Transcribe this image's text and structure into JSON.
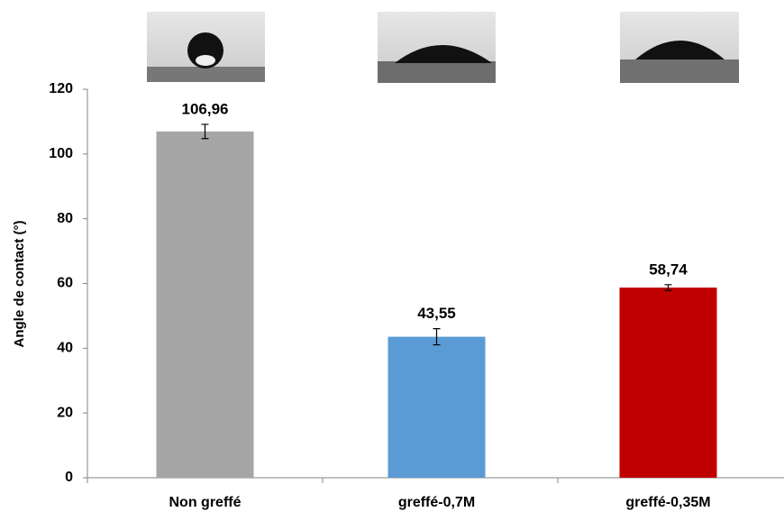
{
  "chart_data": {
    "type": "bar",
    "y_label": "Angle de contact (°)",
    "categories": [
      "Non greffé",
      "greffé-0,7M",
      "greffé-0,35M"
    ],
    "values": [
      106.96,
      43.55,
      58.74
    ],
    "value_labels": [
      "106,96",
      "43,55",
      "58,74"
    ],
    "errors": [
      2.2,
      2.5,
      0.9
    ],
    "colors": [
      "#a6a6a6",
      "#5b9bd5",
      "#c00000"
    ],
    "ylim": [
      0,
      120
    ],
    "yticks": [
      0,
      20,
      40,
      60,
      80,
      100,
      120
    ],
    "grid": false
  }
}
